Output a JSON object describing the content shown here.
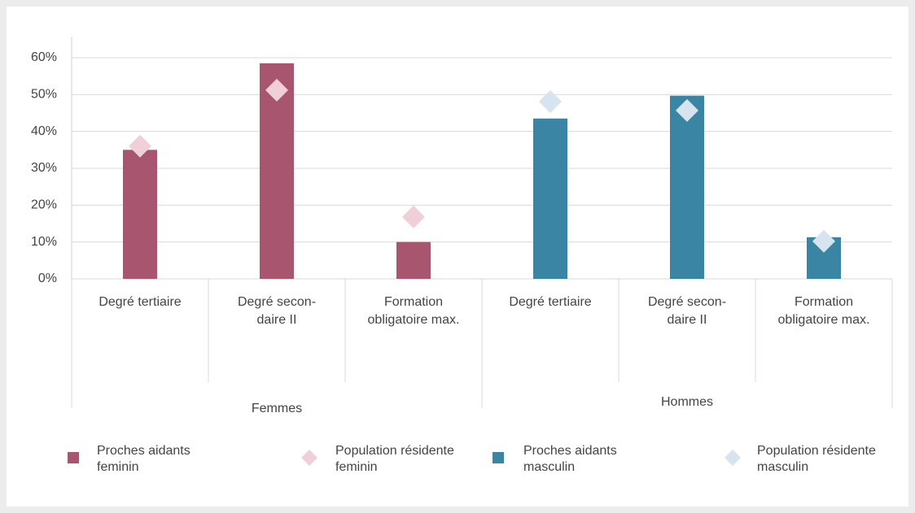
{
  "chart_data": {
    "type": "bar",
    "categories": [
      [
        "Degré tertiaire"
      ],
      [
        "Degré secon-",
        "daire II"
      ],
      [
        "Formation",
        "obligatoire max."
      ],
      [
        "Degré tertiaire"
      ],
      [
        "Degré secon-",
        "daire II"
      ],
      [
        "Formation",
        "obligatoire max."
      ]
    ],
    "groups": [
      {
        "name": "Femmes",
        "size": 3
      },
      {
        "name": "Hommes",
        "size": 3
      }
    ],
    "series": [
      {
        "name": "Proches aidants feminin",
        "kind": "bar",
        "color": "#a8566f",
        "values": [
          35,
          58.5,
          10,
          null,
          null,
          null
        ]
      },
      {
        "name": "Population résidente feminin",
        "kind": "diamond",
        "color": "#f1cfd9",
        "values": [
          36,
          51.2,
          16.8,
          null,
          null,
          null
        ]
      },
      {
        "name": "Proches aidants masculin",
        "kind": "bar",
        "color": "#3a84a4",
        "values": [
          null,
          null,
          null,
          43.5,
          49.7,
          11.3
        ]
      },
      {
        "name": "Population résidente masculin",
        "kind": "diamond",
        "color": "#d5e4ee",
        "values": [
          null,
          null,
          null,
          48.1,
          45.7,
          10.2
        ]
      }
    ],
    "ylim": [
      0,
      60
    ],
    "yticks": [
      {
        "value": 0,
        "label": "0%"
      },
      {
        "value": 10,
        "label": "10%"
      },
      {
        "value": 20,
        "label": "20%"
      },
      {
        "value": 30,
        "label": "30%"
      },
      {
        "value": 40,
        "label": "40%"
      },
      {
        "value": 50,
        "label": "50%"
      },
      {
        "value": 60,
        "label": "60%"
      }
    ],
    "grid": true
  }
}
